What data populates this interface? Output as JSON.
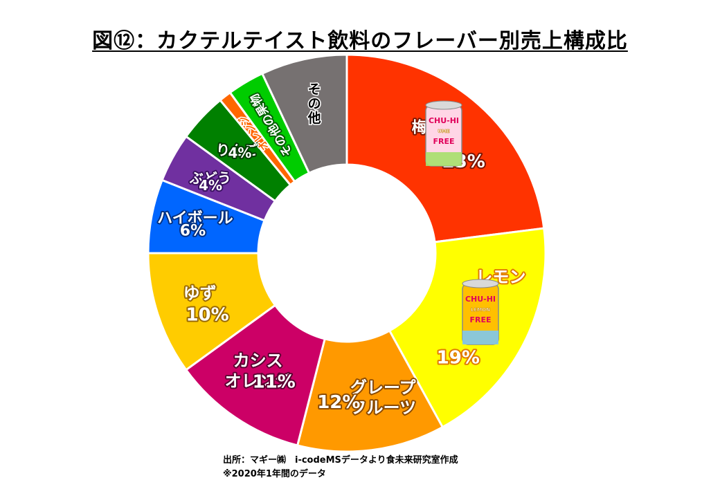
{
  "chart_data": {
    "type": "pie",
    "title": "図⑫：カクテルテイスト飲料のフレーバー別売上構成比",
    "slices": [
      {
        "label": "梅",
        "value": 23,
        "value_label": "23%",
        "color": "#ff3300",
        "text_color": "#ffffff",
        "outline": "#7a1500",
        "icon": "can-chu-hi-ume-free"
      },
      {
        "label": "レモン",
        "value": 19,
        "value_label": "19%",
        "color": "#ffff00",
        "text_color": "#ffffff",
        "outline": "#e07a00",
        "icon": "can-chu-hi-lemon-free"
      },
      {
        "label": "グレープ\nフルーツ",
        "value": 12,
        "value_label": "12%",
        "color": "#ff9900",
        "text_color": "#ffffff",
        "outline": "#8a4a00"
      },
      {
        "label": "カシス\nオレンジ",
        "value": 11,
        "value_label": "11%",
        "color": "#cc0066",
        "text_color": "#ffffff",
        "outline": "#5a0030"
      },
      {
        "label": "ゆず",
        "value": 10,
        "value_label": "10%",
        "color": "#ffcc00",
        "text_color": "#ffffff",
        "outline": "#9a6a00"
      },
      {
        "label": "ハイボール",
        "value": 6,
        "value_label": "6%",
        "color": "#0066ff",
        "text_color": "#ffffff",
        "outline": "#003080"
      },
      {
        "label": "ぶどう",
        "value": 4,
        "value_label": "4%",
        "color": "#7030a0",
        "text_color": "#ffffff",
        "outline": "#3a1060"
      },
      {
        "label": "りんご",
        "value": 4,
        "value_label": "4%",
        "color": "#008000",
        "text_color": "#ffffff",
        "outline": "#003a00"
      },
      {
        "label": "オレンジ",
        "value": 1,
        "value_label": "",
        "color": "#ff6600",
        "text_color": "#ff6600",
        "outline": "#ffffff"
      },
      {
        "label": "その他の果物",
        "value": 3,
        "value_label": "",
        "color": "#00cc00",
        "text_color": "#ffffff",
        "outline": "#006000"
      },
      {
        "label": "その他",
        "value": 7,
        "value_label": "",
        "color": "#767171",
        "text_color": "#000000",
        "outline": "#ffffff"
      }
    ],
    "legend": "none"
  },
  "notes": {
    "source": "出所：マギー㈱　i-codeMSデータより食未来研究室作成",
    "period": "※2020年1年間のデータ"
  }
}
